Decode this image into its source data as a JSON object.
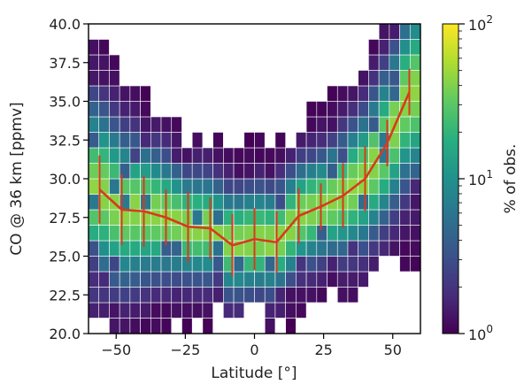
{
  "chart_data": {
    "type": "heatmap",
    "xlabel": "Latitude [°]",
    "ylabel": "CO @ 36 km [ppmv]",
    "xlim": [
      -60,
      60
    ],
    "ylim": [
      20.0,
      40.0
    ],
    "x_ticks": [
      -50,
      -25,
      0,
      25,
      50
    ],
    "x_tick_labels": [
      "−50",
      "−25",
      "0",
      "25",
      "50"
    ],
    "y_ticks": [
      20.0,
      22.5,
      25.0,
      27.5,
      30.0,
      32.5,
      35.0,
      37.5,
      40.0
    ],
    "y_tick_labels": [
      "20.0",
      "22.5",
      "25.0",
      "27.5",
      "30.0",
      "32.5",
      "35.0",
      "37.5",
      "40.0"
    ],
    "grid": false,
    "bin_width_deg": 3.75,
    "bin_height_ppmv": 1.0,
    "colorbar": {
      "label": "% of obs.",
      "scale": "log",
      "range": [
        1,
        100
      ],
      "colormap": "viridis",
      "ticks": [
        {
          "value": 1,
          "base": "10",
          "exp": "0"
        },
        {
          "value": 10,
          "base": "10",
          "exp": "1"
        },
        {
          "value": 100,
          "base": "10",
          "exp": "2"
        }
      ]
    },
    "mean_line": {
      "color": "#d73a1d",
      "x": [
        -56,
        -48,
        -40,
        -32,
        -24,
        -16,
        -8,
        0,
        8,
        16,
        24,
        32,
        40,
        48,
        56
      ],
      "y": [
        29.3,
        28.0,
        27.9,
        27.5,
        26.9,
        26.8,
        25.7,
        26.1,
        25.9,
        27.6,
        28.2,
        28.9,
        30.0,
        32.3,
        35.6
      ],
      "error": [
        2.2,
        2.3,
        2.3,
        1.8,
        2.3,
        2.0,
        2.0,
        2.0,
        2.0,
        1.8,
        1.5,
        2.1,
        2.1,
        1.5,
        1.5
      ]
    },
    "bin_counts_per_column": [
      18,
      18,
      18,
      16,
      16,
      16,
      14,
      14,
      13,
      12,
      12,
      12,
      11,
      11,
      11,
      11,
      11,
      12,
      12,
      12,
      12,
      13,
      13,
      13,
      14,
      14,
      14,
      15,
      15,
      15,
      16,
      16
    ]
  }
}
